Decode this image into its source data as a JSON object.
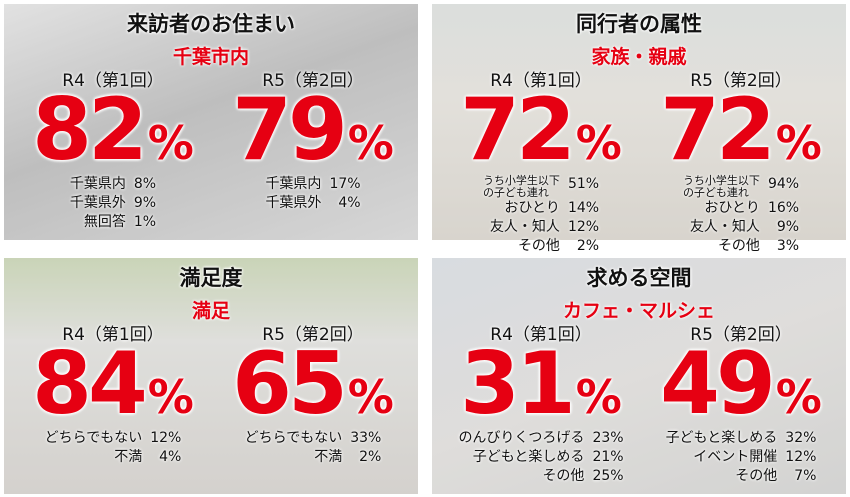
{
  "panels": [
    {
      "title": "来訪者のお住まい",
      "highlight": "千葉市内",
      "columns": [
        {
          "label": "R4（第1回）",
          "value": "82",
          "unit": "%",
          "items": [
            {
              "label": "千葉県内",
              "value": "8%"
            },
            {
              "label": "千葉県外",
              "value": "9%"
            },
            {
              "label": "無回答",
              "value": "1%"
            }
          ]
        },
        {
          "label": "R5（第2回）",
          "value": "79",
          "unit": "%",
          "items": [
            {
              "label": "千葉県内",
              "value": "17%"
            },
            {
              "label": "千葉県外",
              "value": "4%"
            }
          ]
        }
      ]
    },
    {
      "title": "同行者の属性",
      "highlight": "家族・親戚",
      "columns": [
        {
          "label": "R4（第1回）",
          "value": "72",
          "unit": "%",
          "items": [
            {
              "label": "うち小学生以下\nの子ども連れ",
              "value": "51%"
            },
            {
              "label": "おひとり",
              "value": "14%"
            },
            {
              "label": "友人・知人",
              "value": "12%"
            },
            {
              "label": "その他",
              "value": "2%"
            }
          ]
        },
        {
          "label": "R5（第2回）",
          "value": "72",
          "unit": "%",
          "items": [
            {
              "label": "うち小学生以下\nの子ども連れ",
              "value": "94%"
            },
            {
              "label": "おひとり",
              "value": "16%"
            },
            {
              "label": "友人・知人",
              "value": "9%"
            },
            {
              "label": "その他",
              "value": "3%"
            }
          ]
        }
      ]
    },
    {
      "title": "満足度",
      "highlight": "満足",
      "columns": [
        {
          "label": "R4（第1回）",
          "value": "84",
          "unit": "%",
          "items": [
            {
              "label": "どちらでもない",
              "value": "12%"
            },
            {
              "label": "不満",
              "value": "4%"
            }
          ]
        },
        {
          "label": "R5（第2回）",
          "value": "65",
          "unit": "%",
          "items": [
            {
              "label": "どちらでもない",
              "value": "33%"
            },
            {
              "label": "不満",
              "value": "2%"
            }
          ]
        }
      ]
    },
    {
      "title": "求める空間",
      "highlight": "カフェ・マルシェ",
      "columns": [
        {
          "label": "R4（第1回）",
          "value": "31",
          "unit": "%",
          "items": [
            {
              "label": "のんびりくつろげる",
              "value": "23%"
            },
            {
              "label": "子どもと楽しめる",
              "value": "21%"
            },
            {
              "label": "その他",
              "value": "25%"
            }
          ]
        },
        {
          "label": "R5（第2回）",
          "value": "49",
          "unit": "%",
          "items": [
            {
              "label": "子どもと楽しめる",
              "value": "32%"
            },
            {
              "label": "イベント開催",
              "value": "12%"
            },
            {
              "label": "その他",
              "value": "7%"
            }
          ]
        }
      ]
    }
  ]
}
